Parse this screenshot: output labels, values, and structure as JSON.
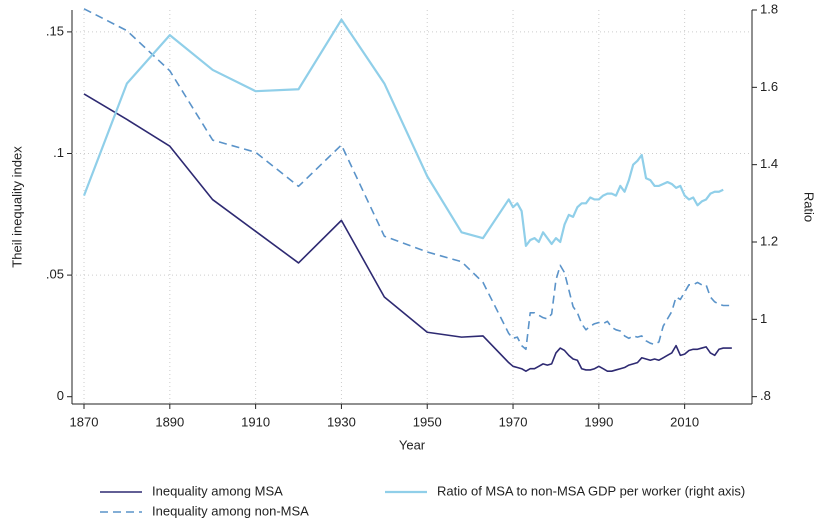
{
  "chart_data": {
    "type": "line",
    "xlabel": "Year",
    "ylabel": "Theil inequality index",
    "y2label": "Ratio",
    "x": [
      1870,
      1880,
      1890,
      1900,
      1910,
      1920,
      1930,
      1940,
      1950,
      1958,
      1963,
      1969,
      1970,
      1971,
      1972,
      1973,
      1974,
      1975,
      1976,
      1977,
      1978,
      1979,
      1980,
      1981,
      1982,
      1983,
      1984,
      1985,
      1986,
      1987,
      1988,
      1989,
      1990,
      1991,
      1992,
      1993,
      1994,
      1995,
      1996,
      1997,
      1998,
      1999,
      2000,
      2001,
      2002,
      2003,
      2004,
      2005,
      2006,
      2007,
      2008,
      2009,
      2010,
      2011,
      2012,
      2013,
      2014,
      2015,
      2016,
      2017,
      2018,
      2019,
      2020,
      2021
    ],
    "xlim": [
      1867.2,
      2025.7
    ],
    "xticks": [
      1870,
      1890,
      1910,
      1930,
      1950,
      1970,
      1990,
      2010
    ],
    "ylim": [
      -0.003,
      0.159
    ],
    "yticks": [
      0,
      {
        "value": 0.05,
        "label": ".05"
      },
      {
        "value": 0.1,
        "label": ".1"
      },
      {
        "value": 0.15,
        "label": ".15"
      }
    ],
    "y2lim": [
      0.781,
      1.8
    ],
    "y2ticks": [
      {
        "value": 0.8,
        "label": ".8"
      },
      1,
      1.2,
      1.4,
      1.6,
      1.8
    ],
    "grid": true,
    "series": [
      {
        "name": "Inequality among MSA",
        "color": "#2e2a72",
        "dashed": false,
        "axis": "y",
        "values": [
          0.1245,
          0.114,
          0.103,
          0.081,
          0.068,
          0.055,
          0.0725,
          0.041,
          0.0265,
          0.0245,
          0.025,
          0.014,
          0.0125,
          0.012,
          0.0115,
          0.0105,
          0.0115,
          0.0115,
          0.0125,
          0.0135,
          0.013,
          0.0135,
          0.018,
          0.02,
          0.019,
          0.017,
          0.0155,
          0.015,
          0.0115,
          0.011,
          0.011,
          0.0115,
          0.0125,
          0.0115,
          0.0105,
          0.0105,
          0.011,
          0.0115,
          0.012,
          0.013,
          0.0135,
          0.014,
          0.016,
          0.0155,
          0.015,
          0.0155,
          0.015,
          0.016,
          0.017,
          0.018,
          0.021,
          0.017,
          0.0175,
          0.019,
          0.0195,
          0.0195,
          0.02,
          0.0205,
          0.018,
          0.017,
          0.0195,
          0.02,
          0.02,
          0.02
        ]
      },
      {
        "name": "Inequality among non-MSA",
        "color": "#5a93c9",
        "dashed": true,
        "axis": "y",
        "values": [
          0.1595,
          0.1505,
          0.134,
          0.1055,
          0.1005,
          0.0865,
          0.1035,
          0.066,
          0.0595,
          0.0555,
          0.047,
          0.026,
          0.024,
          0.0245,
          0.021,
          0.0195,
          0.0345,
          0.0345,
          0.0335,
          0.0325,
          0.032,
          0.034,
          0.048,
          0.054,
          0.051,
          0.044,
          0.037,
          0.0345,
          0.03,
          0.0275,
          0.029,
          0.03,
          0.0305,
          0.03,
          0.031,
          0.0285,
          0.0275,
          0.027,
          0.025,
          0.024,
          0.025,
          0.0245,
          0.025,
          0.023,
          0.022,
          0.0215,
          0.0225,
          0.029,
          0.032,
          0.035,
          0.041,
          0.04,
          0.043,
          0.046,
          0.046,
          0.047,
          0.046,
          0.046,
          0.041,
          0.039,
          0.038,
          0.0375,
          0.0375,
          0.0375
        ]
      },
      {
        "name": "Ratio of MSA to non-MSA GDP per worker (right axis)",
        "color": "#90cfe9",
        "dashed": false,
        "axis": "y2",
        "values": [
          1.32,
          1.61,
          1.735,
          1.645,
          1.59,
          1.595,
          1.775,
          1.61,
          1.37,
          1.225,
          1.21,
          1.31,
          1.29,
          1.3,
          1.28,
          1.19,
          1.205,
          1.21,
          1.2,
          1.225,
          1.21,
          1.195,
          1.21,
          1.2,
          1.245,
          1.27,
          1.265,
          1.29,
          1.3,
          1.3,
          1.315,
          1.31,
          1.31,
          1.32,
          1.325,
          1.325,
          1.32,
          1.345,
          1.33,
          1.36,
          1.4,
          1.41,
          1.425,
          1.365,
          1.36,
          1.345,
          1.345,
          1.35,
          1.355,
          1.35,
          1.34,
          1.345,
          1.32,
          1.31,
          1.315,
          1.295,
          1.305,
          1.31,
          1.325,
          1.33,
          1.33,
          1.335,
          null,
          null
        ]
      }
    ]
  }
}
